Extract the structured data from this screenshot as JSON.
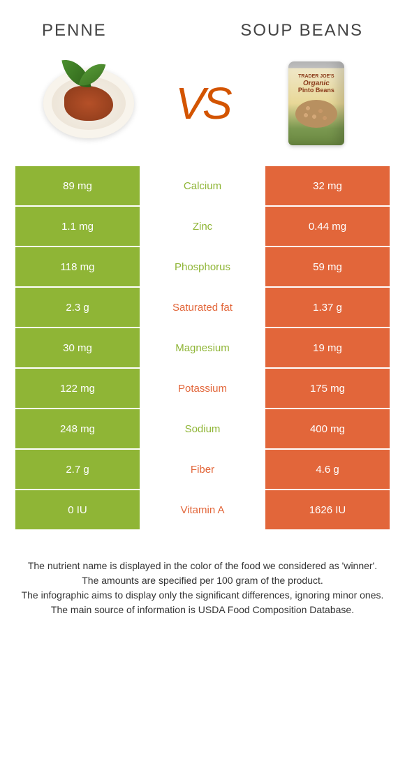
{
  "header": {
    "left_title": "PENNE",
    "right_title": "SOUP BEANS"
  },
  "vs_label": "VS",
  "can": {
    "line1": "TRADER JOE'S",
    "line2": "Organic",
    "line3": "Pinto Beans"
  },
  "colors": {
    "left_bg": "#8fb536",
    "right_bg": "#e2663a",
    "left_winner_text": "#8fb536",
    "right_winner_text": "#e2663a"
  },
  "rows": [
    {
      "left": "89 mg",
      "label": "Calcium",
      "right": "32 mg",
      "winner": "left"
    },
    {
      "left": "1.1 mg",
      "label": "Zinc",
      "right": "0.44 mg",
      "winner": "left"
    },
    {
      "left": "118 mg",
      "label": "Phosphorus",
      "right": "59 mg",
      "winner": "left"
    },
    {
      "left": "2.3 g",
      "label": "Saturated fat",
      "right": "1.37 g",
      "winner": "right"
    },
    {
      "left": "30 mg",
      "label": "Magnesium",
      "right": "19 mg",
      "winner": "left"
    },
    {
      "left": "122 mg",
      "label": "Potassium",
      "right": "175 mg",
      "winner": "right"
    },
    {
      "left": "248 mg",
      "label": "Sodium",
      "right": "400 mg",
      "winner": "left"
    },
    {
      "left": "2.7 g",
      "label": "Fiber",
      "right": "4.6 g",
      "winner": "right"
    },
    {
      "left": "0 IU",
      "label": "Vitamin A",
      "right": "1626 IU",
      "winner": "right"
    }
  ],
  "footer_lines": [
    "The nutrient name is displayed in the color of the food we considered as 'winner'.",
    "The amounts are specified per 100 gram of the product.",
    "The infographic aims to display only the significant differences, ignoring minor ones.",
    "The main source of information is USDA Food Composition Database."
  ]
}
